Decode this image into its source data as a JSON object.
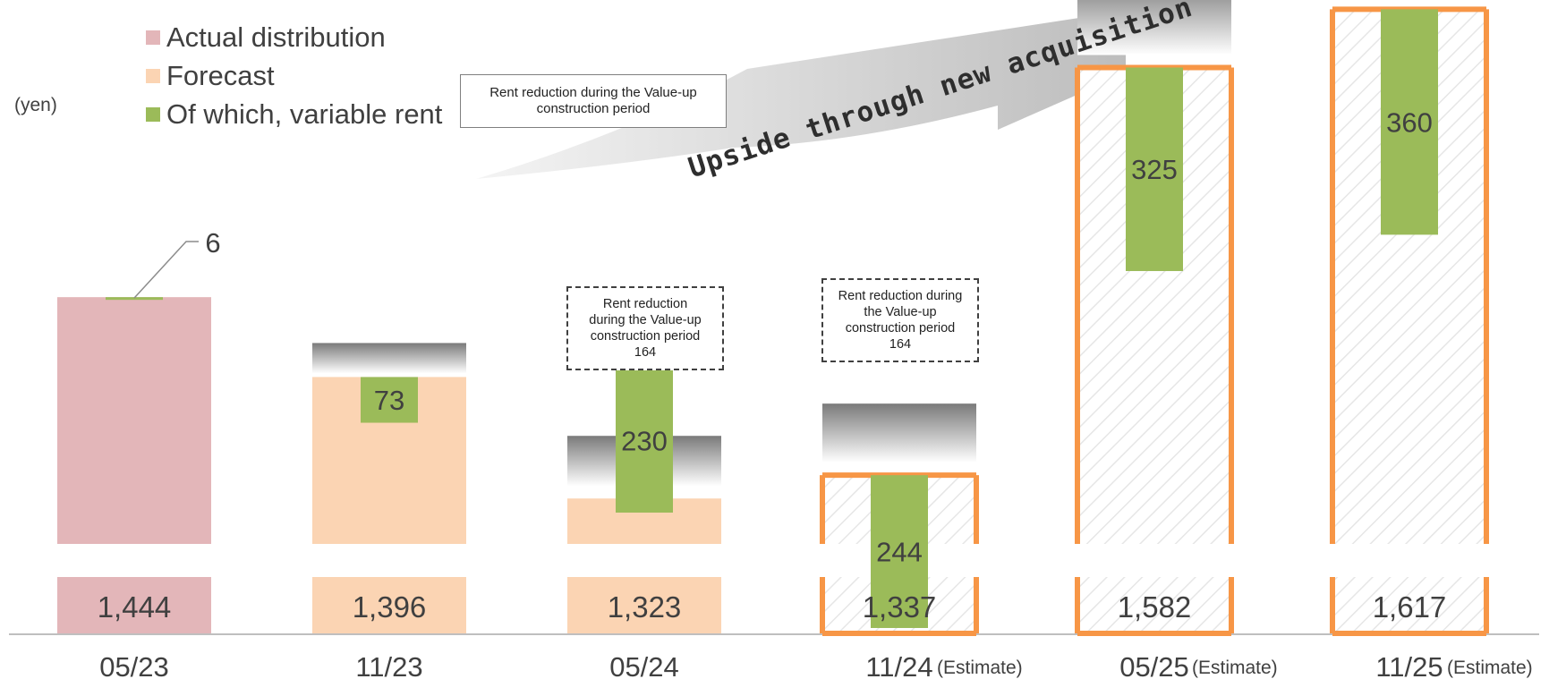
{
  "unit_label": "(yen)",
  "legend": [
    {
      "label": "Actual distribution",
      "color": "#e3b6b9"
    },
    {
      "label": "Forecast",
      "color": "#fbd4b3"
    },
    {
      "label": "Of which, variable rent",
      "color": "#9bbb59"
    }
  ],
  "banner": {
    "text": "Upside through new acquisition"
  },
  "notes": {
    "top": "Rent reduction during the Value-up construction period",
    "box_0524": [
      "Rent reduction",
      "during the Value-up",
      "construction period",
      "164"
    ],
    "box_1124": [
      "Rent reduction during",
      "the Value-up",
      "construction period",
      "164"
    ]
  },
  "colors": {
    "actual": "#e3b6b9",
    "forecast": "#fbd4b3",
    "variable": "#9bbb59",
    "estimate_border": "#f79646",
    "hatch_line": "#e6e6e6"
  },
  "chart_data": {
    "type": "bar",
    "categories": [
      "05/23",
      "11/23",
      "05/24",
      "11/24",
      "05/25",
      "11/25"
    ],
    "period_suffix": [
      "",
      "",
      "",
      "(Estimate)",
      "(Estimate)",
      "(Estimate)"
    ],
    "status": [
      "actual",
      "forecast",
      "forecast",
      "estimate",
      "estimate",
      "estimate"
    ],
    "series": [
      {
        "name": "Actual distribution",
        "values": [
          1444,
          null,
          null,
          null,
          null,
          null
        ],
        "labels": [
          "1,444",
          "",
          "",
          "",
          "",
          ""
        ]
      },
      {
        "name": "Forecast",
        "values": [
          null,
          1396,
          1323,
          1337,
          1582,
          1617
        ],
        "labels": [
          "",
          "1,396",
          "1,323",
          "1,337",
          "1,582",
          "1,617"
        ]
      },
      {
        "name": "Of which, variable rent",
        "values": [
          6,
          73,
          230,
          244,
          325,
          360
        ],
        "labels": [
          "6",
          "73",
          "230",
          "244",
          "325",
          "360"
        ]
      }
    ],
    "rent_reduction": [
      null,
      null,
      164,
      164,
      null,
      null
    ],
    "axis_break": true
  }
}
